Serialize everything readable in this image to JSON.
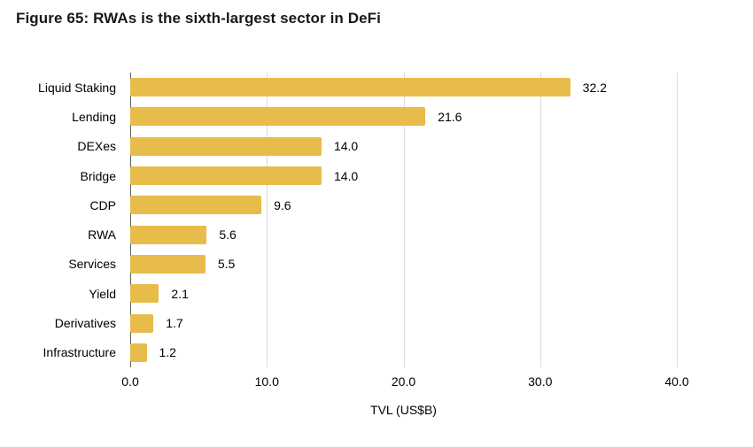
{
  "figure": {
    "title": "Figure 65: RWAs is the sixth-largest sector in DeFi"
  },
  "chart_data": {
    "type": "bar",
    "orientation": "horizontal",
    "title": "Figure 65: RWAs is the sixth-largest sector in DeFi",
    "categories": [
      "Liquid Staking",
      "Lending",
      "DEXes",
      "Bridge",
      "CDP",
      "RWA",
      "Services",
      "Yield",
      "Derivatives",
      "Infrastructure"
    ],
    "values": [
      32.2,
      21.6,
      14.0,
      14.0,
      9.6,
      5.6,
      5.5,
      2.1,
      1.7,
      1.2
    ],
    "value_labels": [
      "32.2",
      "21.6",
      "14.0",
      "14.0",
      "9.6",
      "5.6",
      "5.5",
      "2.1",
      "1.7",
      "1.2"
    ],
    "xlabel": "TVL (US$B)",
    "ylabel": "",
    "x_ticks": [
      "0.0",
      "10.0",
      "20.0",
      "30.0",
      "40.0"
    ],
    "x_tick_values": [
      0,
      10,
      20,
      30,
      40
    ],
    "xlim": [
      0,
      40
    ],
    "grid": true,
    "legend_position": "none",
    "data_labels": true
  },
  "colors": {
    "bar": "#E7BC4B",
    "gridline": "#dcdcdc",
    "axis_line": "#5f5f5f",
    "text": "#000000",
    "title_text": "#17181d",
    "background": "#ffffff"
  }
}
